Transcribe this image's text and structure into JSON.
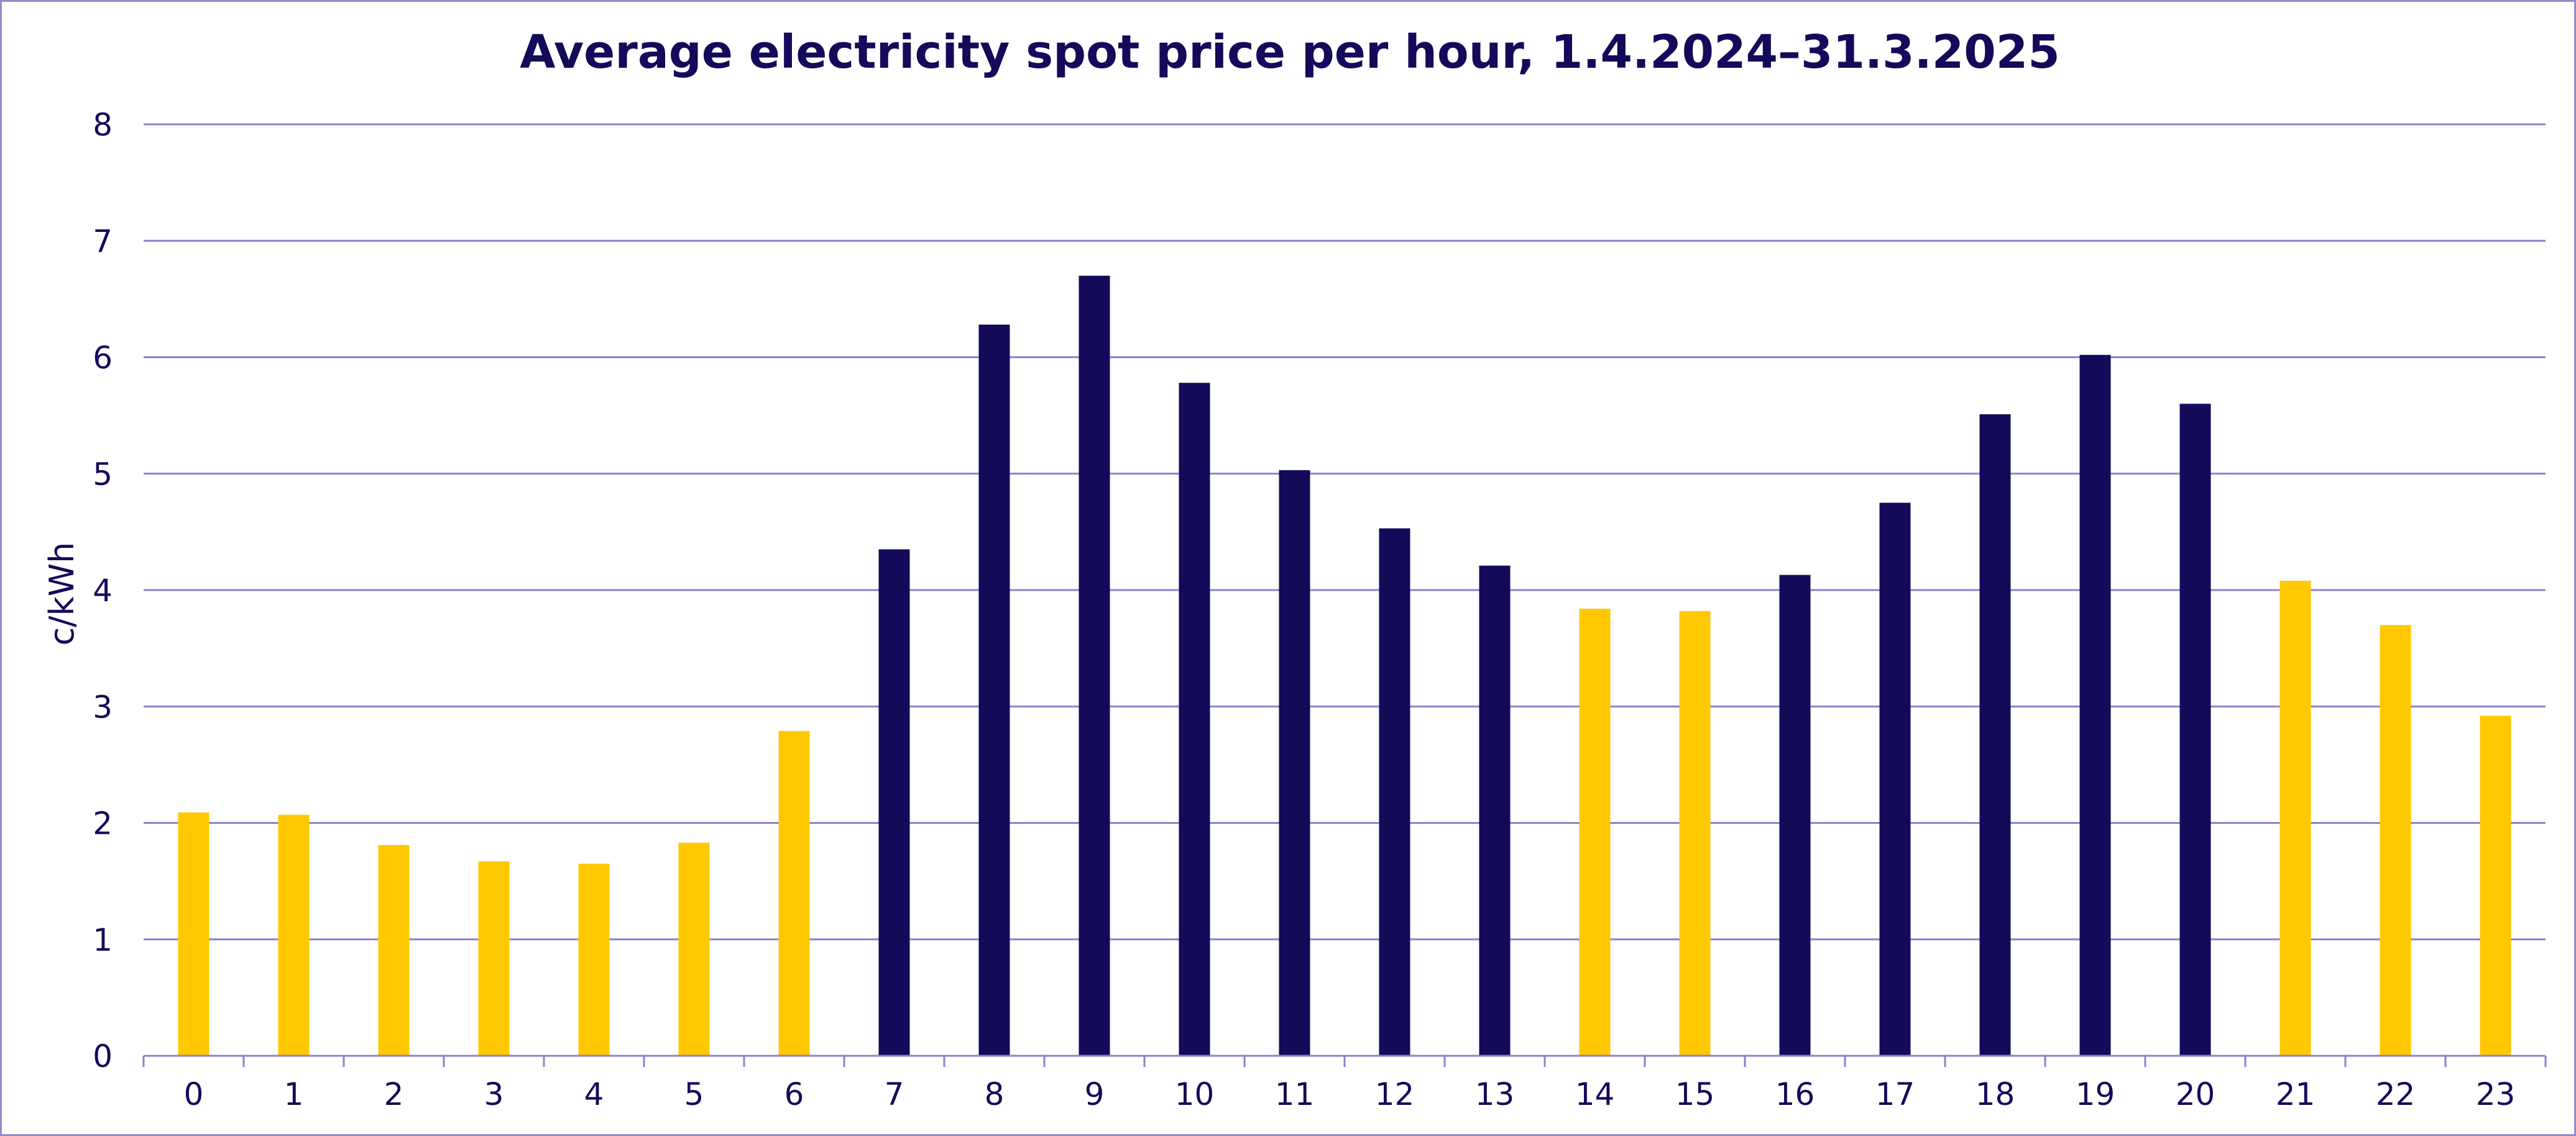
{
  "chart_data": {
    "type": "bar",
    "title": "Average electricity spot price per hour, 1.4.2024–31.3.2025",
    "xlabel": "",
    "ylabel": "c/kWh",
    "ylim": [
      0,
      8
    ],
    "yticks": [
      "0",
      "1",
      "2",
      "3",
      "4",
      "5",
      "6",
      "7",
      "8"
    ],
    "categories": [
      "0",
      "1",
      "2",
      "3",
      "4",
      "5",
      "6",
      "7",
      "8",
      "9",
      "10",
      "11",
      "12",
      "13",
      "14",
      "15",
      "16",
      "17",
      "18",
      "19",
      "20",
      "21",
      "22",
      "23"
    ],
    "values": [
      2.09,
      2.07,
      1.81,
      1.67,
      1.65,
      1.83,
      2.79,
      4.35,
      6.28,
      6.7,
      5.78,
      5.03,
      4.53,
      4.21,
      3.84,
      3.82,
      4.13,
      4.75,
      5.51,
      6.02,
      5.6,
      4.08,
      3.7,
      2.92
    ],
    "bar_colors": [
      "yellow",
      "yellow",
      "yellow",
      "yellow",
      "yellow",
      "yellow",
      "yellow",
      "navy",
      "navy",
      "navy",
      "navy",
      "navy",
      "navy",
      "navy",
      "yellow",
      "yellow",
      "navy",
      "navy",
      "navy",
      "navy",
      "navy",
      "yellow",
      "yellow",
      "yellow"
    ],
    "palette": {
      "yellow": "#ffc800",
      "navy": "#140a5a",
      "gridline": "#8e80cc",
      "text": "#140a5a",
      "border": "#9b8ac8"
    },
    "grid": true,
    "legend": "none"
  }
}
